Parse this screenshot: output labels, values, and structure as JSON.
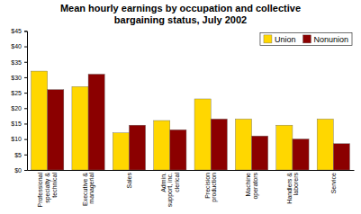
{
  "chart_data": {
    "type": "bar",
    "title": "Mean hourly earnings by occupation and collective\nbargaining status, July 2002",
    "categories": [
      "Professional\nspecialty &\ntechnical",
      "Executive &\nmanagerial",
      "Sales",
      "Admin.\nsupport, inc.\nclerical",
      "Precision\nproduction",
      "Machine\noperators",
      "Handlers &\nlaborers",
      "Service"
    ],
    "series": [
      {
        "name": "Union",
        "color": "#FFD700",
        "values": [
          32,
          27,
          12,
          16,
          23,
          16.5,
          14.5,
          16.5
        ]
      },
      {
        "name": "Nonunion",
        "color": "#8B0000",
        "values": [
          26,
          31,
          14.5,
          13,
          16.5,
          11,
          10,
          8.5
        ]
      }
    ],
    "ylim": [
      0,
      45
    ],
    "yticks": [
      {
        "value": 0,
        "label": "$0"
      },
      {
        "value": 5,
        "label": "$5"
      },
      {
        "value": 10,
        "label": "$10"
      },
      {
        "value": 15,
        "label": "$15"
      },
      {
        "value": 20,
        "label": "$20"
      },
      {
        "value": 25,
        "label": "$25"
      },
      {
        "value": 30,
        "label": "$30"
      },
      {
        "value": 35,
        "label": "$35"
      },
      {
        "value": 40,
        "label": "$40"
      },
      {
        "value": 45,
        "label": "$45"
      }
    ],
    "grid": false,
    "legend": "upper right"
  }
}
